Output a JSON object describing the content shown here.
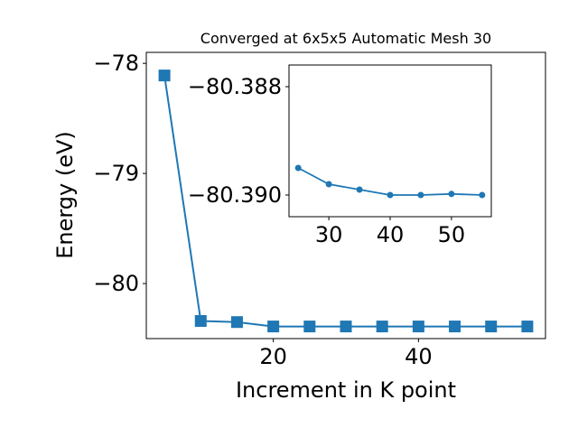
{
  "chart_data": [
    {
      "type": "line",
      "title": "Converged at 6x5x5 Automatic Mesh 30",
      "xlabel": "Increment in K point",
      "ylabel": "Energy (eV)",
      "xlim": [
        2.5,
        57.5
      ],
      "ylim": [
        -80.5,
        -77.9
      ],
      "xticks": [
        20,
        40
      ],
      "yticks": [
        -78,
        -79,
        -80
      ],
      "xtick_labels": [
        "20",
        "40"
      ],
      "ytick_labels": [
        "−78",
        "−79",
        "−80"
      ],
      "marker": "square",
      "color": "#1f77b4",
      "grid": false,
      "x": [
        5,
        10,
        15,
        20,
        25,
        30,
        35,
        40,
        45,
        50,
        55
      ],
      "y": [
        -78.11,
        -80.34,
        -80.35,
        -80.39,
        -80.39,
        -80.39,
        -80.39,
        -80.39,
        -80.39,
        -80.39,
        -80.39
      ]
    },
    {
      "type": "line",
      "title": "",
      "xlabel": "",
      "ylabel": "",
      "xlim": [
        23.5,
        56.5
      ],
      "ylim": [
        -80.3904,
        -80.3876
      ],
      "xticks": [
        30,
        40,
        50
      ],
      "yticks": [
        -80.39,
        -80.388
      ],
      "xtick_labels": [
        "30",
        "40",
        "50"
      ],
      "ytick_labels": [
        "−80.390",
        "−80.388"
      ],
      "marker": "circle",
      "color": "#1f77b4",
      "grid": false,
      "x": [
        25,
        30,
        35,
        40,
        45,
        50,
        55
      ],
      "y": [
        -80.3895,
        -80.3898,
        -80.3899,
        -80.39,
        -80.39,
        -80.38998,
        -80.39
      ]
    }
  ]
}
